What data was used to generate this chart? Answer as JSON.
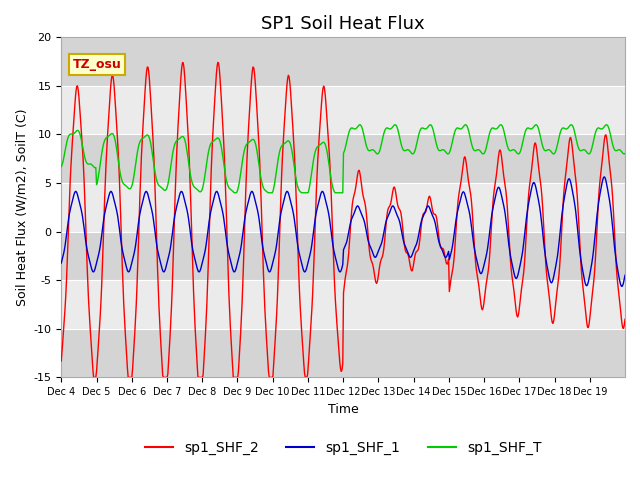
{
  "title": "SP1 Soil Heat Flux",
  "xlabel": "Time",
  "ylabel": "Soil Heat Flux (W/m2), SoilT (C)",
  "ylim": [
    -15,
    20
  ],
  "yticks": [
    -15,
    -10,
    -5,
    0,
    5,
    10,
    15,
    20
  ],
  "xtick_labels": [
    "Dec 4",
    "Dec 5",
    "Dec 6",
    "Dec 7",
    "Dec 8",
    "Dec 9",
    "Dec 10",
    "Dec 11",
    "Dec 12",
    "Dec 13",
    "Dec 14",
    "Dec 15",
    "Dec 16",
    "Dec 17",
    "Dec 18",
    "Dec 19"
  ],
  "color_red": "#ff0000",
  "color_blue": "#0000cc",
  "color_green": "#00cc00",
  "tz_label": "TZ_osu",
  "legend_labels": [
    "sp1_SHF_2",
    "sp1_SHF_1",
    "sp1_SHF_T"
  ],
  "bg_color": "#ffffff",
  "plot_bg_color": "#ebebeb",
  "band_color": "#d4d4d4",
  "title_fontsize": 13,
  "axis_label_fontsize": 9,
  "tick_fontsize": 8
}
